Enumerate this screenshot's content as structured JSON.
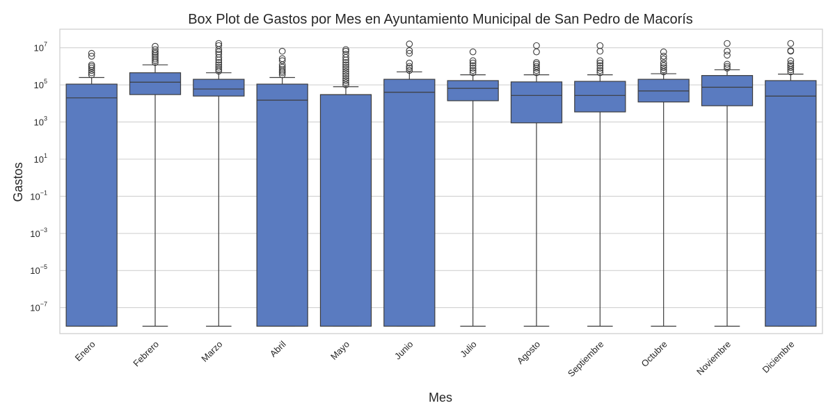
{
  "chart_data": {
    "type": "box",
    "title": "Box Plot de Gastos por Mes en Ayuntamiento Municipal de San Pedro de Macorís",
    "xlabel": "Mes",
    "ylabel": "Gastos",
    "y_scale": "log",
    "ylim": [
      4e-09,
      100000000
    ],
    "y_ticks": [
      {
        "base": "10",
        "exp": "7",
        "value": 10000000
      },
      {
        "base": "10",
        "exp": "5",
        "value": 100000
      },
      {
        "base": "10",
        "exp": "3",
        "value": 1000
      },
      {
        "base": "10",
        "exp": "1",
        "value": 10
      },
      {
        "base": "10",
        "exp": "−1",
        "value": 0.1
      },
      {
        "base": "10",
        "exp": "−3",
        "value": 0.001
      },
      {
        "base": "10",
        "exp": "−5",
        "value": 1e-05
      },
      {
        "base": "10",
        "exp": "−7",
        "value": 1e-07
      }
    ],
    "grid": true,
    "box_color": "#5a7bc0",
    "edge_color": "#3d3d3d",
    "categories": [
      "Enero",
      "Febrero",
      "Marzo",
      "Abril",
      "Mayo",
      "Junio",
      "Julio",
      "Agosto",
      "Septiembre",
      "Octubre",
      "Noviembre",
      "Diciembre"
    ],
    "boxes": [
      {
        "category": "Enero",
        "whisker_low": 1e-08,
        "q1": 1e-08,
        "median": 20000,
        "q3": 110000,
        "whisker_high": 250000,
        "outliers": [
          350000,
          450000,
          600000,
          800000,
          1000000,
          1200000,
          3500000,
          5000000
        ]
      },
      {
        "category": "Febrero",
        "whisker_low": 1e-08,
        "q1": 30000,
        "median": 140000,
        "q3": 450000,
        "whisker_high": 1200000,
        "outliers": [
          1600000,
          2000000,
          2500000,
          3200000,
          4000000,
          5000000,
          6000000,
          8000000,
          12000000
        ]
      },
      {
        "category": "Marzo",
        "whisker_low": 1e-08,
        "q1": 25000,
        "median": 60000,
        "q3": 200000,
        "whisker_high": 450000,
        "outliers": [
          550000,
          700000,
          900000,
          1200000,
          1600000,
          2200000,
          3000000,
          4500000,
          6000000,
          8000000,
          13000000,
          17000000
        ]
      },
      {
        "category": "Abril",
        "whisker_low": 1e-08,
        "q1": 1e-08,
        "median": 15000,
        "q3": 110000,
        "whisker_high": 250000,
        "outliers": [
          350000,
          450000,
          550000,
          700000,
          900000,
          1200000,
          2000000,
          2600000,
          6500000
        ]
      },
      {
        "category": "Mayo",
        "whisker_low": 1e-08,
        "q1": 1e-08,
        "median": 30000,
        "q3": 30000,
        "whisker_high": 80000,
        "outliers": [
          100000,
          130000,
          170000,
          220000,
          300000,
          400000,
          520000,
          700000,
          900000,
          1200000,
          1600000,
          2200000,
          3000000,
          4500000,
          6500000,
          8000000
        ]
      },
      {
        "category": "Junio",
        "whisker_low": 1e-08,
        "q1": 1e-08,
        "median": 40000,
        "q3": 200000,
        "whisker_high": 500000,
        "outliers": [
          600000,
          800000,
          1000000,
          1500000,
          5000000,
          7000000,
          16000000
        ]
      },
      {
        "category": "Julio",
        "whisker_low": 1e-08,
        "q1": 14000,
        "median": 65000,
        "q3": 170000,
        "whisker_high": 350000,
        "outliers": [
          450000,
          600000,
          800000,
          1100000,
          1500000,
          2000000,
          6000000
        ]
      },
      {
        "category": "Agosto",
        "whisker_low": 1e-08,
        "q1": 900,
        "median": 27000,
        "q3": 145000,
        "whisker_high": 350000,
        "outliers": [
          450000,
          600000,
          800000,
          1000000,
          1300000,
          1600000,
          6000000,
          13000000
        ]
      },
      {
        "category": "Septiembre",
        "whisker_low": 1e-08,
        "q1": 3500,
        "median": 27000,
        "q3": 155000,
        "whisker_high": 350000,
        "outliers": [
          450000,
          600000,
          800000,
          1100000,
          1500000,
          2000000,
          6500000,
          13000000
        ]
      },
      {
        "category": "Octubre",
        "whisker_low": 1e-08,
        "q1": 12000,
        "median": 47000,
        "q3": 200000,
        "whisker_high": 400000,
        "outliers": [
          500000,
          650000,
          850000,
          1100000,
          1500000,
          2500000,
          3500000,
          6000000
        ]
      },
      {
        "category": "Noviembre",
        "whisker_low": 1e-08,
        "q1": 7500,
        "median": 75000,
        "q3": 320000,
        "whisker_high": 650000,
        "outliers": [
          800000,
          1000000,
          1300000,
          4000000,
          6500000,
          17000000
        ]
      },
      {
        "category": "Diciembre",
        "whisker_low": 1e-08,
        "q1": 1e-08,
        "median": 25000,
        "q3": 170000,
        "whisker_high": 380000,
        "outliers": [
          500000,
          650000,
          850000,
          1100000,
          1400000,
          2000000,
          6500000,
          7000000,
          17000000
        ]
      }
    ]
  }
}
